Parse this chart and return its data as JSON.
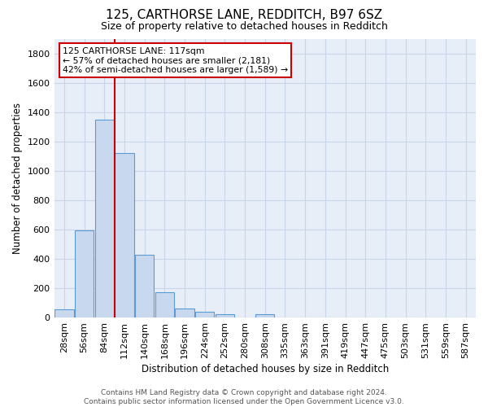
{
  "title": "125, CARTHORSE LANE, REDDITCH, B97 6SZ",
  "subtitle": "Size of property relative to detached houses in Redditch",
  "xlabel": "Distribution of detached houses by size in Redditch",
  "ylabel": "Number of detached properties",
  "bar_color": "#c8d9ef",
  "bar_edge_color": "#5b9bd5",
  "grid_color": "#c8d4e8",
  "bg_color": "#e8eef8",
  "bin_labels": [
    "28sqm",
    "56sqm",
    "84sqm",
    "112sqm",
    "140sqm",
    "168sqm",
    "196sqm",
    "224sqm",
    "252sqm",
    "280sqm",
    "308sqm",
    "335sqm",
    "363sqm",
    "391sqm",
    "419sqm",
    "447sqm",
    "475sqm",
    "503sqm",
    "531sqm",
    "559sqm",
    "587sqm"
  ],
  "bar_values": [
    55,
    595,
    1350,
    1120,
    425,
    170,
    60,
    40,
    20,
    0,
    20,
    0,
    0,
    0,
    0,
    0,
    0,
    0,
    0,
    0,
    0
  ],
  "ylim": [
    0,
    1900
  ],
  "yticks": [
    0,
    200,
    400,
    600,
    800,
    1000,
    1200,
    1400,
    1600,
    1800
  ],
  "vline_x": 2.5,
  "vline_color": "#cc0000",
  "annotation_line1": "125 CARTHORSE LANE: 117sqm",
  "annotation_line2": "← 57% of detached houses are smaller (2,181)",
  "annotation_line3": "42% of semi-detached houses are larger (1,589) →",
  "annotation_box_color": "#ffffff",
  "annotation_box_edge_color": "#cc0000",
  "footer_text": "Contains HM Land Registry data © Crown copyright and database right 2024.\nContains public sector information licensed under the Open Government Licence v3.0.",
  "figsize": [
    6.0,
    5.0
  ],
  "dpi": 100
}
